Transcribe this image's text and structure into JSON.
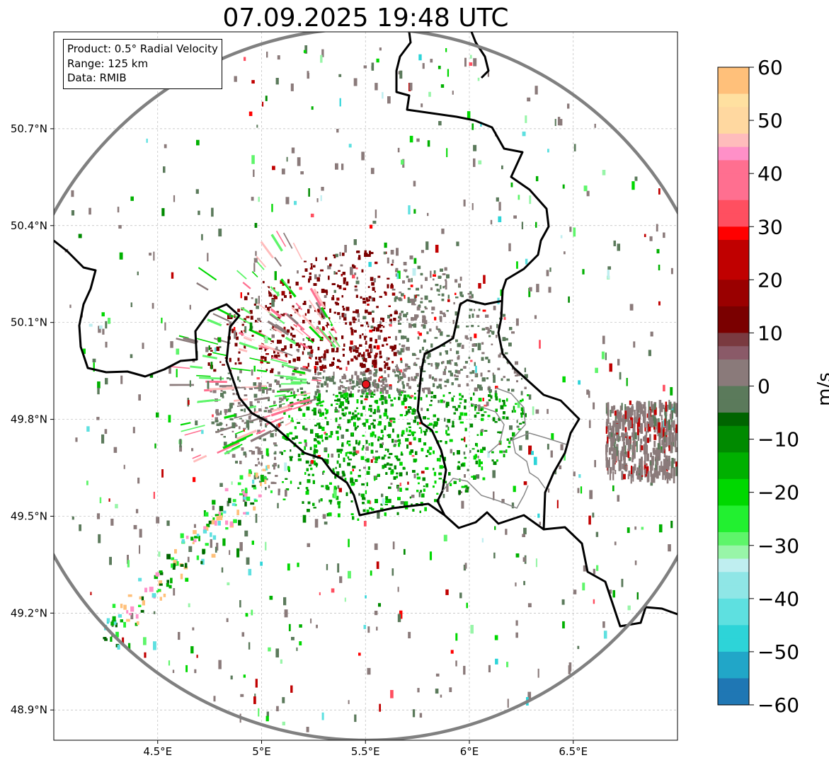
{
  "title": "07.09.2025 19:48 UTC",
  "info_box": {
    "product": "Product: 0.5° Radial Velocity",
    "range": "Range: 125 km",
    "data": "Data: RMIB"
  },
  "map": {
    "lon_range": [
      4.0,
      7.0
    ],
    "lat_range": [
      48.8,
      51.0
    ],
    "lon_ticks": [
      "4.5°E",
      "5°E",
      "5.5°E",
      "6°E",
      "6.5°E"
    ],
    "lat_ticks": [
      "50.7°N",
      "50.4°N",
      "50.1°N",
      "49.8°N",
      "49.5°N",
      "49.2°N",
      "48.9°N"
    ],
    "radar_site": {
      "lon": 5.505,
      "lat": 49.914
    },
    "range_ring_color": "#808080",
    "radar_marker_color": "#e8141c",
    "gridlines": true
  },
  "colorbar": {
    "label": "m/s",
    "ticks": [
      "60",
      "50",
      "40",
      "30",
      "20",
      "10",
      "0",
      "−10",
      "−20",
      "−30",
      "−40",
      "−50",
      "−60"
    ],
    "range": [
      -60,
      60
    ]
  }
}
